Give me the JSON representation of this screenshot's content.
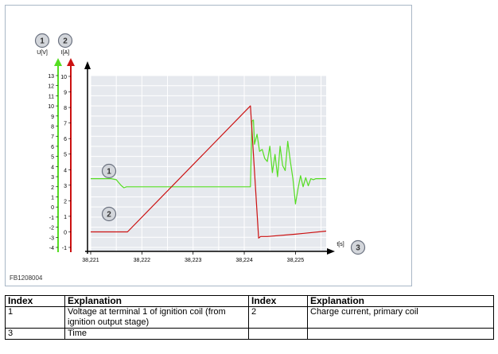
{
  "figure": {
    "code": "FB1208004",
    "colors": {
      "voltage": "#55dd22",
      "current": "#cc1111",
      "plot_bg": "#e6e9ee",
      "grid": "#ffffff"
    }
  },
  "chart_data": {
    "type": "line",
    "xlabel": "t[s]",
    "xlim": [
      38.221,
      38.2256
    ],
    "x_ticks": [
      "38,221",
      "38,222",
      "38,223",
      "38,224",
      "38,225"
    ],
    "y_axes": [
      {
        "label": "U[V]",
        "marker": "1",
        "ylim": [
          -4,
          13
        ],
        "ticks": [
          "13",
          "12",
          "11",
          "10",
          "9",
          "8",
          "7",
          "6",
          "5",
          "4",
          "3",
          "2",
          "1",
          "0",
          "-1",
          "-2",
          "-3",
          "-4"
        ]
      },
      {
        "label": "I[A]",
        "marker": "2",
        "ylim": [
          -1,
          10
        ],
        "ticks": [
          "10",
          "9",
          "8",
          "7",
          "6",
          "5",
          "4",
          "3",
          "2",
          "1",
          "0",
          "-1"
        ]
      }
    ],
    "series": [
      {
        "marker": "1",
        "axis": 0,
        "x": [
          38.221,
          38.2214,
          38.2215,
          38.22155,
          38.2216,
          38.22165,
          38.2217,
          38.22175,
          38.2218,
          38.2223,
          38.22412,
          38.22415,
          38.22418,
          38.2242,
          38.22425,
          38.2243,
          38.22435,
          38.2244,
          38.22445,
          38.2245,
          38.22455,
          38.2246,
          38.22465,
          38.2247,
          38.22475,
          38.2248,
          38.22485,
          38.2249,
          38.22495,
          38.225,
          38.22505,
          38.2251,
          38.22515,
          38.2252,
          38.22525,
          38.2253,
          38.22535,
          38.2254,
          38.22545,
          38.2255,
          38.2256
        ],
        "y": [
          2.8,
          2.8,
          2.7,
          2.4,
          2.1,
          1.9,
          2.0,
          2.0,
          2.0,
          2.0,
          2.0,
          8.5,
          8.6,
          6.2,
          7.2,
          5.5,
          5.7,
          4.8,
          4.5,
          6.0,
          3.4,
          5.2,
          3.0,
          6.0,
          4.1,
          3.6,
          6.5,
          4.5,
          2.8,
          0.3,
          1.8,
          3.1,
          2.0,
          2.9,
          2.1,
          2.8,
          2.7,
          2.8,
          2.8,
          2.8,
          2.8
        ]
      },
      {
        "marker": "2",
        "axis": 1,
        "x": [
          38.221,
          38.22172,
          38.22412,
          38.22428,
          38.22432,
          38.22445,
          38.225,
          38.2256
        ],
        "y": [
          0.0,
          0.0,
          8.1,
          -0.4,
          -0.3,
          -0.3,
          -0.15,
          0.05
        ]
      }
    ]
  },
  "legend": {
    "headers": [
      "Index",
      "Explanation",
      "Index",
      "Explanation"
    ],
    "rows": [
      [
        "1",
        "Voltage at terminal 1 of ignition coil (from ignition output stage)",
        "2",
        "Charge current, primary coil"
      ],
      [
        "3",
        "Time",
        "",
        ""
      ]
    ]
  }
}
